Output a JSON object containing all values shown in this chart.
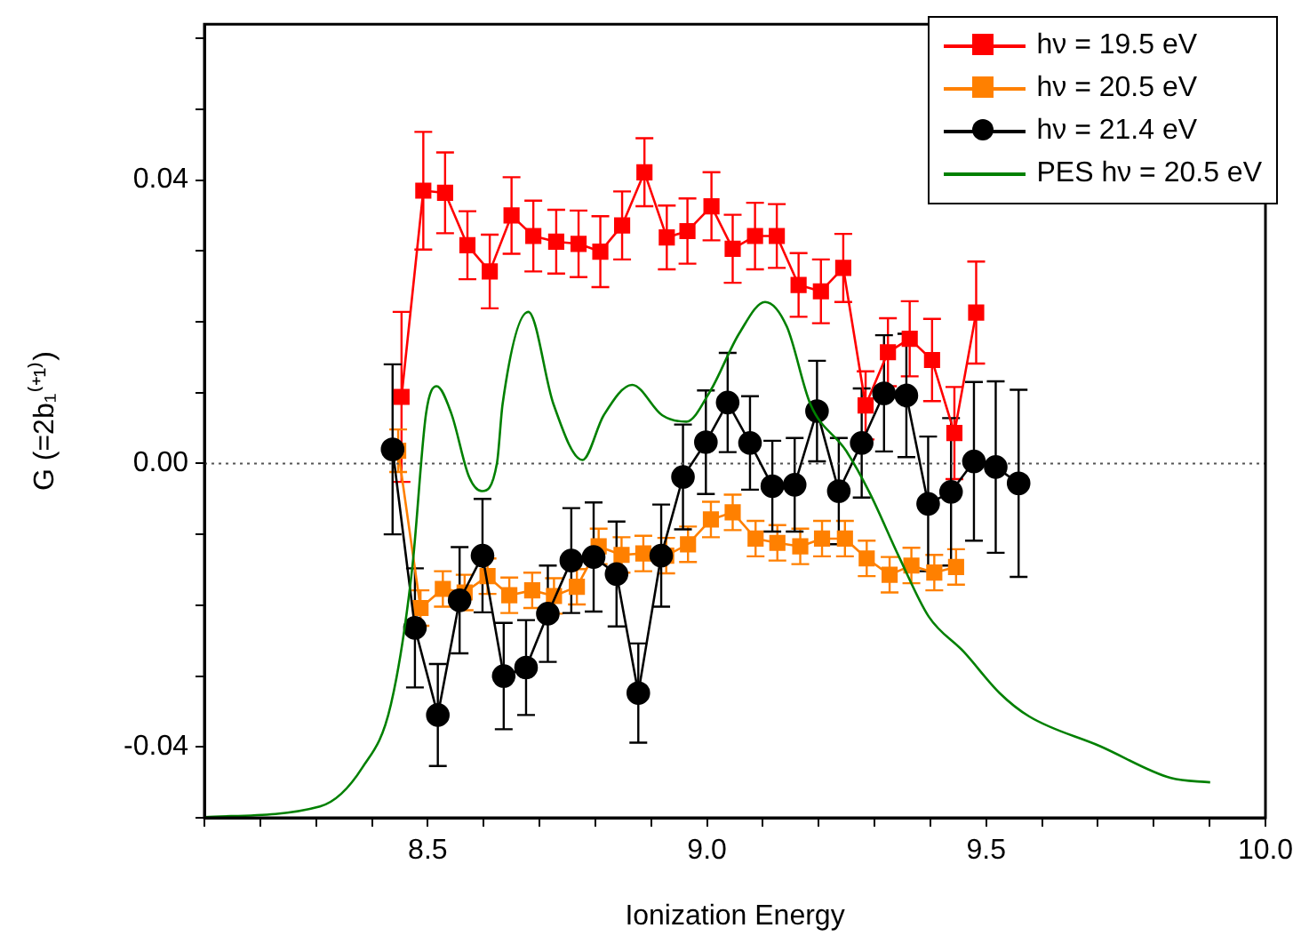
{
  "chart_data": {
    "type": "line",
    "xlabel": "Ionization Energy",
    "ylabel": "G (=2b₁⁽⁺¹⁾)",
    "xlim": [
      8.1,
      10.0
    ],
    "ylim": [
      -0.05,
      0.062
    ],
    "xticks": [
      {
        "value": 8.1,
        "label": null
      },
      {
        "value": 8.2,
        "label": null
      },
      {
        "value": 8.3,
        "label": null
      },
      {
        "value": 8.4,
        "label": null
      },
      {
        "value": 8.5,
        "label": "8.5"
      },
      {
        "value": 8.6,
        "label": null
      },
      {
        "value": 8.7,
        "label": null
      },
      {
        "value": 8.8,
        "label": null
      },
      {
        "value": 8.9,
        "label": null
      },
      {
        "value": 9.0,
        "label": "9.0"
      },
      {
        "value": 9.1,
        "label": null
      },
      {
        "value": 9.2,
        "label": null
      },
      {
        "value": 9.3,
        "label": null
      },
      {
        "value": 9.4,
        "label": null
      },
      {
        "value": 9.5,
        "label": "9.5"
      },
      {
        "value": 9.6,
        "label": null
      },
      {
        "value": 9.7,
        "label": null
      },
      {
        "value": 9.8,
        "label": null
      },
      {
        "value": 9.9,
        "label": null
      },
      {
        "value": 10.0,
        "label": "10.0"
      }
    ],
    "yticks": [
      {
        "value": -0.05,
        "label": null
      },
      {
        "value": -0.04,
        "label": "-0.04"
      },
      {
        "value": -0.03,
        "label": null
      },
      {
        "value": -0.02,
        "label": null
      },
      {
        "value": -0.01,
        "label": null
      },
      {
        "value": 0,
        "label": "0.00"
      },
      {
        "value": 0.01,
        "label": null
      },
      {
        "value": 0.02,
        "label": null
      },
      {
        "value": 0.03,
        "label": null
      },
      {
        "value": 0.04,
        "label": "0.04"
      },
      {
        "value": 0.05,
        "label": null
      },
      {
        "value": 0.06,
        "label": null
      }
    ],
    "grid": false,
    "legend": "top right",
    "line_style": "solid",
    "ref_lines": [
      {
        "axis": "y",
        "value": 0,
        "label": null,
        "color": "#555555",
        "line_style": "dotted"
      }
    ],
    "series": [
      {
        "name": "hν = 19.5 eV",
        "color": "#ff0000",
        "marker": "square",
        "x": [
          8.453,
          8.492,
          8.531,
          8.571,
          8.611,
          8.65,
          8.689,
          8.73,
          8.77,
          8.809,
          8.848,
          8.888,
          8.928,
          8.965,
          9.008,
          9.046,
          9.086,
          9.125,
          9.164,
          9.204,
          9.244,
          9.284,
          9.324,
          9.363,
          9.403,
          9.443,
          9.482
        ],
        "values": [
          0.0094,
          0.0385,
          0.0382,
          0.0308,
          0.0271,
          0.035,
          0.0321,
          0.0313,
          0.031,
          0.0299,
          0.0336,
          0.0411,
          0.0319,
          0.0328,
          0.0363,
          0.0303,
          0.0321,
          0.0321,
          0.0252,
          0.0243,
          0.0276,
          0.0082,
          0.0157,
          0.0176,
          0.0146,
          0.0043,
          0.0213
        ],
        "errors": [
          0.012,
          0.0083,
          0.0057,
          0.0048,
          0.0052,
          0.0054,
          0.005,
          0.0045,
          0.0047,
          0.005,
          0.0048,
          0.0048,
          0.0045,
          0.0046,
          0.0048,
          0.0048,
          0.0047,
          0.0045,
          0.0045,
          0.0045,
          0.0048,
          0.0048,
          0.0048,
          0.0053,
          0.0058,
          0.0065,
          0.0072
        ]
      },
      {
        "name": "hν = 20.5 eV",
        "color": "#ff8000",
        "marker": "square",
        "x": [
          8.447,
          8.487,
          8.527,
          8.566,
          8.607,
          8.646,
          8.687,
          8.726,
          8.767,
          8.806,
          8.847,
          8.886,
          8.927,
          8.966,
          9.007,
          9.046,
          9.087,
          9.126,
          9.167,
          9.206,
          9.247,
          9.286,
          9.327,
          9.366,
          9.407,
          9.446
        ],
        "values": [
          0.0018,
          -0.0204,
          -0.0177,
          -0.0182,
          -0.0159,
          -0.0186,
          -0.0179,
          -0.0187,
          -0.0174,
          -0.0117,
          -0.0129,
          -0.0127,
          -0.013,
          -0.0114,
          -0.0079,
          -0.0069,
          -0.0106,
          -0.0112,
          -0.0117,
          -0.0106,
          -0.0106,
          -0.0134,
          -0.0157,
          -0.0144,
          -0.0154,
          -0.0146
        ],
        "errors": [
          0.003,
          0.0025,
          0.0025,
          0.0025,
          0.0025,
          0.0025,
          0.0025,
          0.0025,
          0.0025,
          0.0025,
          0.0025,
          0.0025,
          0.0025,
          0.0025,
          0.0025,
          0.0025,
          0.0025,
          0.0025,
          0.0025,
          0.0025,
          0.0025,
          0.0025,
          0.0025,
          0.0025,
          0.0025,
          0.0025
        ]
      },
      {
        "name": "hν = 21.4 eV",
        "color": "#000000",
        "marker": "circle",
        "x": [
          8.437,
          8.477,
          8.518,
          8.557,
          8.598,
          8.636,
          8.676,
          8.715,
          8.757,
          8.797,
          8.838,
          8.877,
          8.918,
          8.957,
          8.998,
          9.037,
          9.077,
          9.117,
          9.157,
          9.197,
          9.236,
          9.277,
          9.317,
          9.357,
          9.396,
          9.437,
          9.478,
          9.517,
          9.558
        ],
        "values": [
          0.002,
          -0.0232,
          -0.0355,
          -0.0193,
          -0.013,
          -0.03,
          -0.0288,
          -0.0212,
          -0.0137,
          -0.0132,
          -0.0156,
          -0.0324,
          -0.013,
          -0.0019,
          0.003,
          0.0086,
          0.0029,
          -0.0032,
          -0.003,
          0.0074,
          -0.0039,
          0.0029,
          0.0099,
          0.0096,
          -0.0057,
          -0.004,
          0.0003,
          -0.0005,
          -0.0028
        ],
        "errors": [
          0.012,
          0.0084,
          0.0072,
          0.0075,
          0.008,
          0.0075,
          0.0067,
          0.0068,
          0.0074,
          0.0077,
          0.0074,
          0.007,
          0.0072,
          0.0074,
          0.0073,
          0.007,
          0.0066,
          0.0064,
          0.0066,
          0.0071,
          0.0075,
          0.0077,
          0.0082,
          0.0087,
          0.0095,
          0.0104,
          0.0112,
          0.0121,
          0.0132
        ]
      },
      {
        "name": "PES hν = 20.5 eV",
        "color": "#008000",
        "marker": "none",
        "x": [
          8.1,
          8.307,
          8.383,
          8.434,
          8.472,
          8.497,
          8.516,
          8.542,
          8.574,
          8.597,
          8.624,
          8.634,
          8.68,
          8.725,
          8.777,
          8.815,
          8.866,
          8.92,
          8.963,
          9.005,
          9.058,
          9.104,
          9.143,
          9.185,
          9.249,
          9.291,
          9.344,
          9.397,
          9.46,
          9.524,
          9.577,
          9.704,
          9.831,
          9.901
        ],
        "values": [
          -0.0499,
          -0.0484,
          -0.0429,
          -0.034,
          -0.0149,
          0.0071,
          0.0109,
          0.0071,
          -0.0019,
          -0.0039,
          0.0001,
          0.0084,
          0.0214,
          0.0084,
          0.0005,
          0.0068,
          0.0111,
          0.0068,
          0.0059,
          0.0101,
          0.0184,
          0.0228,
          0.0193,
          0.0084,
          0.0018,
          -0.0041,
          -0.0132,
          -0.0216,
          -0.0266,
          -0.0324,
          -0.0357,
          -0.0399,
          -0.0444,
          -0.045
        ]
      }
    ]
  }
}
